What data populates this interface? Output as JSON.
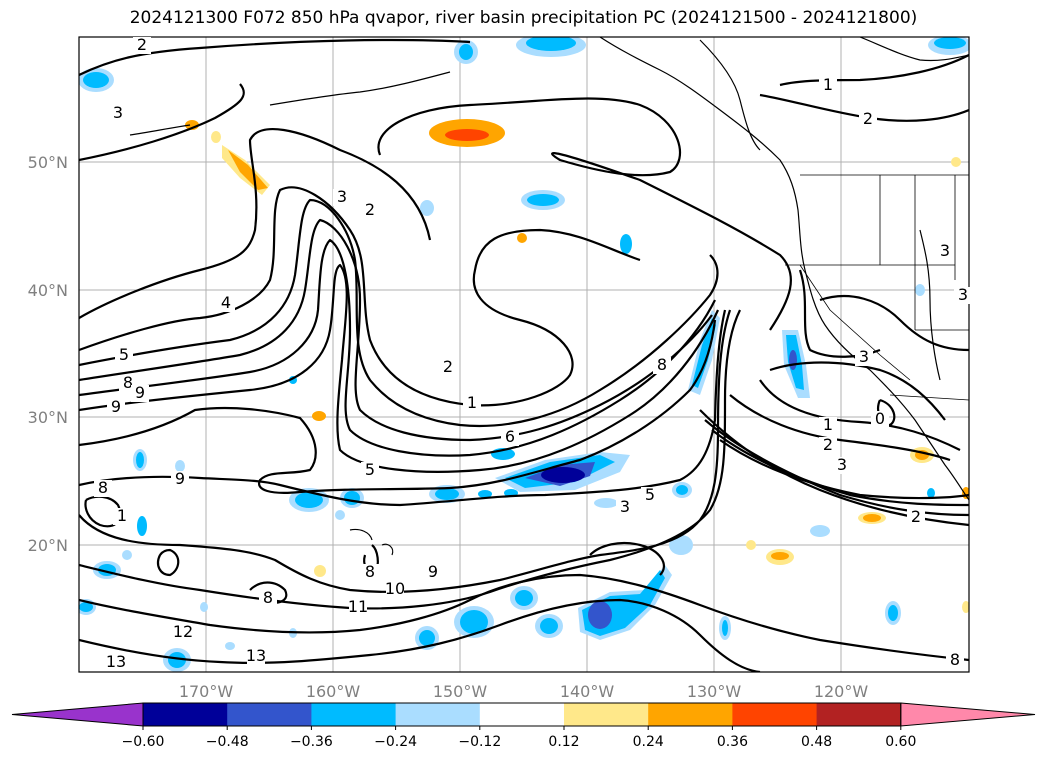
{
  "title": "2024121300 F072 850 hPa qvapor, river basin precipitation PC (2024121500 - 2024121800)",
  "lat_labels": [
    "50°N",
    "40°N",
    "30°N",
    "20°N"
  ],
  "lon_labels": [
    "170°W",
    "160°W",
    "150°W",
    "140°W",
    "130°W",
    "120°W"
  ],
  "contour_labels": [
    "2",
    "1",
    "2",
    "3",
    "2",
    "3",
    "4",
    "5",
    "8",
    "9",
    "9",
    "2",
    "1",
    "6",
    "8",
    "3",
    "1",
    "2",
    "3",
    "0",
    "5",
    "5",
    "3",
    "2",
    "8",
    "9",
    "1",
    "8",
    "10",
    "9",
    "11",
    "8",
    "12",
    "13",
    "13",
    "8",
    "3",
    "3"
  ],
  "colorbar": {
    "ticks": [
      "−0.60",
      "−0.48",
      "−0.36",
      "−0.24",
      "−0.12",
      "0.12",
      "0.24",
      "0.36",
      "0.48",
      "0.60"
    ],
    "colors": [
      "#9933cc",
      "#000099",
      "#3355cc",
      "#00bbff",
      "#aaddff",
      "#ffffff",
      "#ffe88a",
      "#ffa500",
      "#ff4400",
      "#b22222",
      "#ff88aa"
    ]
  }
}
